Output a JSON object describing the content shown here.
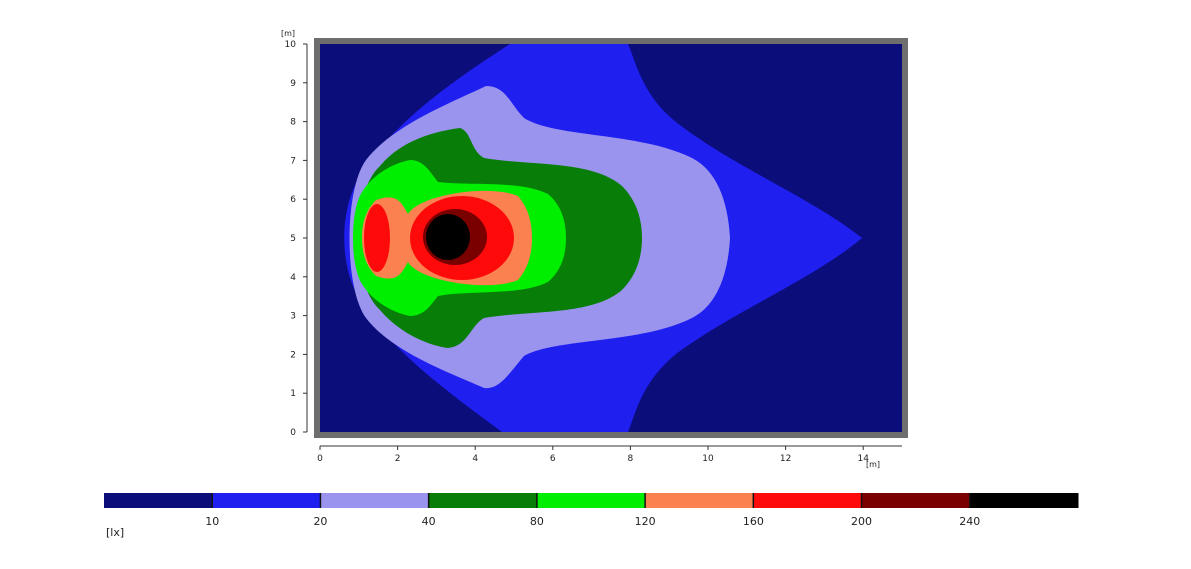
{
  "chart_data": {
    "type": "heatmap",
    "title": "",
    "x_unit": "[m]",
    "y_unit": "[m]",
    "xlim": [
      0,
      15
    ],
    "ylim": [
      0,
      10
    ],
    "x_ticks": [
      0,
      2,
      4,
      6,
      8,
      10,
      12,
      14
    ],
    "y_ticks": [
      0,
      1,
      2,
      3,
      4,
      5,
      6,
      7,
      8,
      9,
      10
    ],
    "legend": {
      "unit": "[lx]",
      "placement": "bottom",
      "thresholds": [
        10,
        20,
        40,
        80,
        120,
        160,
        200,
        240
      ],
      "colors": [
        "#0b0d7a",
        "#1f1ff0",
        "#9a94ef",
        "#087d08",
        "#00ee00",
        "#fb8150",
        "#ff0a0a",
        "#7a0000",
        "#000000"
      ]
    },
    "levels": [
      {
        "min_lx": 0,
        "color": "#0b0d7a",
        "region": "background"
      },
      {
        "min_lx": 10,
        "color": "#1f1ff0",
        "region": "outer-lobe",
        "x_extent": [
          0.8,
          14.0
        ]
      },
      {
        "min_lx": 20,
        "color": "#9a94ef",
        "region": "lobe",
        "x_extent": [
          0.9,
          10.6
        ]
      },
      {
        "min_lx": 40,
        "color": "#087d08",
        "region": "lobe",
        "x_extent": [
          0.9,
          8.2
        ]
      },
      {
        "min_lx": 80,
        "color": "#00ee00",
        "region": "lobe",
        "x_extent": [
          1.0,
          6.4
        ]
      },
      {
        "min_lx": 120,
        "color": "#fb8150",
        "region": "lobe",
        "x_extent": [
          1.0,
          5.3
        ]
      },
      {
        "min_lx": 160,
        "color": "#ff0a0a",
        "region": "lobe",
        "x_extent": [
          1.0,
          4.9
        ]
      },
      {
        "min_lx": 200,
        "color": "#7a0000",
        "region": "core",
        "center": [
          3.5,
          5.0
        ]
      },
      {
        "min_lx": 240,
        "color": "#000000",
        "region": "core",
        "center": [
          3.4,
          5.0
        ]
      }
    ]
  }
}
